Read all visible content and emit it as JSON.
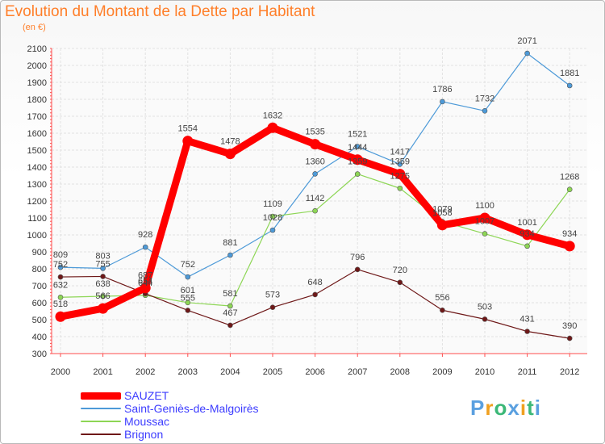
{
  "title": "Evolution du Montant de la Dette par Habitant",
  "subtitle": "(en €)",
  "brand": {
    "text": "Proxiti",
    "colors": [
      "#5aa0e0",
      "#f0a020",
      "#3cb878",
      "#5aa0e0",
      "#f0a020",
      "#3cb878",
      "#5aa0e0"
    ]
  },
  "chart_data": {
    "type": "line",
    "title": "Evolution du Montant de la Dette par Habitant",
    "subtitle": "(en €)",
    "x": [
      2000,
      2001,
      2002,
      2003,
      2004,
      2005,
      2006,
      2007,
      2008,
      2009,
      2010,
      2011,
      2012
    ],
    "ylim": [
      300,
      2100
    ],
    "yticks": [
      300,
      400,
      500,
      600,
      700,
      800,
      900,
      1000,
      1100,
      1200,
      1300,
      1400,
      1500,
      1600,
      1700,
      1800,
      1900,
      2000,
      2100
    ],
    "grid": true,
    "legend_position": "bottom-left",
    "series": [
      {
        "name": "SAUZET",
        "color": "#ff0000",
        "values": [
          518,
          566,
          687,
          1554,
          1478,
          1632,
          1535,
          1444,
          1359,
          1058,
          1100,
          1001,
          934
        ]
      },
      {
        "name": "Saint-Geniès-de-Malgoirès",
        "color": "#4d9ad8",
        "values": [
          809,
          803,
          928,
          752,
          881,
          1028,
          1360,
          1521,
          1417,
          1786,
          1732,
          2071,
          1881
        ]
      },
      {
        "name": "Moussac",
        "color": "#8dd655",
        "values": [
          632,
          638,
          644,
          601,
          581,
          1109,
          1142,
          1359,
          1275,
          1079,
          1007,
          934,
          1268
        ]
      },
      {
        "name": "Brignon",
        "color": "#6e1818",
        "values": [
          752,
          755,
          654,
          555,
          467,
          573,
          648,
          796,
          720,
          556,
          503,
          431,
          390
        ]
      }
    ]
  }
}
